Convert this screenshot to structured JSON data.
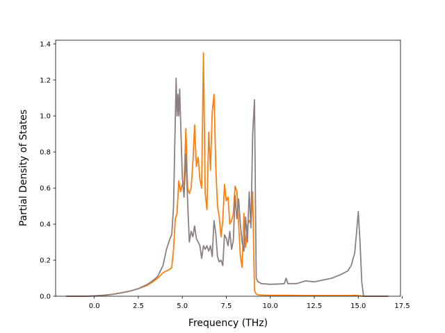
{
  "chart_data": {
    "type": "line",
    "title": "",
    "xlabel": "Frequency (THz)",
    "ylabel": "Partial Density of States",
    "xlim": [
      -2.2,
      17.4
    ],
    "ylim": [
      0,
      1.42
    ],
    "x_ticks": [
      0.0,
      2.5,
      5.0,
      7.5,
      10.0,
      12.5,
      15.0,
      17.5
    ],
    "x_tick_labels": [
      "0.0",
      "2.5",
      "5.0",
      "7.5",
      "10.0",
      "12.5",
      "15.0",
      "17.5"
    ],
    "y_ticks": [
      0.0,
      0.2,
      0.4,
      0.6,
      0.8,
      1.0,
      1.2,
      1.4
    ],
    "y_tick_labels": [
      "0.0",
      "0.2",
      "0.4",
      "0.6",
      "0.8",
      "1.0",
      "1.2",
      "1.4"
    ],
    "grid": false,
    "legend": "none",
    "series": [
      {
        "color": "#ff7f0e",
        "x": [
          -1.6,
          -0.5,
          0.0,
          0.5,
          1.0,
          1.5,
          2.0,
          2.5,
          3.0,
          3.3,
          3.6,
          3.9,
          4.1,
          4.3,
          4.4,
          4.5,
          4.6,
          4.7,
          4.8,
          4.9,
          5.0,
          5.1,
          5.2,
          5.3,
          5.4,
          5.5,
          5.6,
          5.7,
          5.8,
          5.9,
          6.0,
          6.1,
          6.2,
          6.3,
          6.4,
          6.5,
          6.6,
          6.7,
          6.8,
          6.9,
          7.0,
          7.1,
          7.2,
          7.3,
          7.4,
          7.5,
          7.6,
          7.7,
          7.8,
          7.9,
          8.0,
          8.1,
          8.2,
          8.3,
          8.4,
          8.5,
          8.6,
          8.7,
          8.8,
          8.9,
          9.0,
          9.1,
          9.2,
          9.3,
          9.5,
          10.0,
          11.0,
          12.0,
          13.0,
          14.0,
          14.5,
          14.8,
          15.0,
          15.1,
          15.3,
          16.0,
          16.7
        ],
        "y": [
          0.0,
          0.0,
          0.002,
          0.005,
          0.01,
          0.018,
          0.028,
          0.042,
          0.06,
          0.078,
          0.1,
          0.13,
          0.14,
          0.15,
          0.16,
          0.26,
          0.43,
          0.46,
          0.64,
          0.58,
          0.62,
          0.62,
          0.93,
          0.6,
          0.57,
          0.6,
          0.74,
          0.95,
          0.72,
          0.77,
          0.65,
          0.6,
          1.35,
          0.57,
          0.48,
          0.91,
          0.7,
          1.02,
          1.12,
          0.72,
          0.5,
          0.44,
          0.33,
          0.42,
          0.62,
          0.53,
          0.55,
          0.4,
          0.42,
          0.46,
          0.61,
          0.58,
          0.4,
          0.22,
          0.16,
          0.46,
          0.27,
          0.39,
          0.42,
          0.4,
          0.58,
          0.03,
          0.012,
          0.008,
          0.006,
          0.005,
          0.005,
          0.004,
          0.004,
          0.004,
          0.004,
          0.005,
          0.004,
          0.002,
          0.0,
          0.0,
          0.0
        ]
      },
      {
        "color": "#8c7f7f",
        "x": [
          -1.6,
          -0.5,
          0.0,
          0.5,
          1.0,
          1.5,
          2.0,
          2.5,
          3.0,
          3.3,
          3.6,
          3.9,
          4.1,
          4.3,
          4.4,
          4.5,
          4.6,
          4.65,
          4.7,
          4.75,
          4.8,
          4.85,
          4.9,
          5.0,
          5.1,
          5.2,
          5.3,
          5.4,
          5.5,
          5.6,
          5.7,
          5.8,
          5.9,
          6.0,
          6.1,
          6.2,
          6.3,
          6.4,
          6.5,
          6.6,
          6.7,
          6.8,
          6.9,
          7.0,
          7.1,
          7.2,
          7.3,
          7.4,
          7.5,
          7.6,
          7.7,
          7.8,
          7.9,
          8.0,
          8.1,
          8.2,
          8.3,
          8.4,
          8.5,
          8.6,
          8.7,
          8.8,
          8.9,
          9.0,
          9.1,
          9.2,
          9.3,
          9.5,
          10.0,
          10.5,
          10.8,
          10.9,
          11.0,
          11.5,
          12.0,
          12.5,
          13.0,
          13.5,
          14.0,
          14.4,
          14.6,
          14.8,
          14.9,
          15.0,
          15.1,
          15.2,
          15.3,
          16.0,
          16.7
        ],
        "y": [
          0.0,
          0.0,
          0.002,
          0.005,
          0.01,
          0.018,
          0.028,
          0.042,
          0.065,
          0.085,
          0.11,
          0.17,
          0.26,
          0.32,
          0.34,
          0.5,
          0.98,
          1.21,
          1.0,
          1.12,
          1.0,
          1.15,
          0.98,
          0.66,
          0.55,
          0.79,
          0.53,
          0.3,
          0.36,
          0.33,
          0.39,
          0.32,
          0.3,
          0.28,
          0.21,
          0.28,
          0.26,
          0.28,
          0.25,
          0.28,
          0.22,
          0.42,
          0.35,
          0.22,
          0.19,
          0.2,
          0.17,
          0.34,
          0.32,
          0.28,
          0.36,
          0.26,
          0.31,
          0.56,
          0.43,
          0.54,
          0.4,
          0.3,
          0.25,
          0.44,
          0.3,
          0.58,
          0.38,
          0.9,
          1.09,
          0.1,
          0.08,
          0.07,
          0.066,
          0.068,
          0.07,
          0.1,
          0.07,
          0.07,
          0.085,
          0.08,
          0.09,
          0.1,
          0.12,
          0.14,
          0.17,
          0.24,
          0.35,
          0.47,
          0.3,
          0.08,
          0.0,
          0.0,
          0.0
        ]
      }
    ]
  }
}
